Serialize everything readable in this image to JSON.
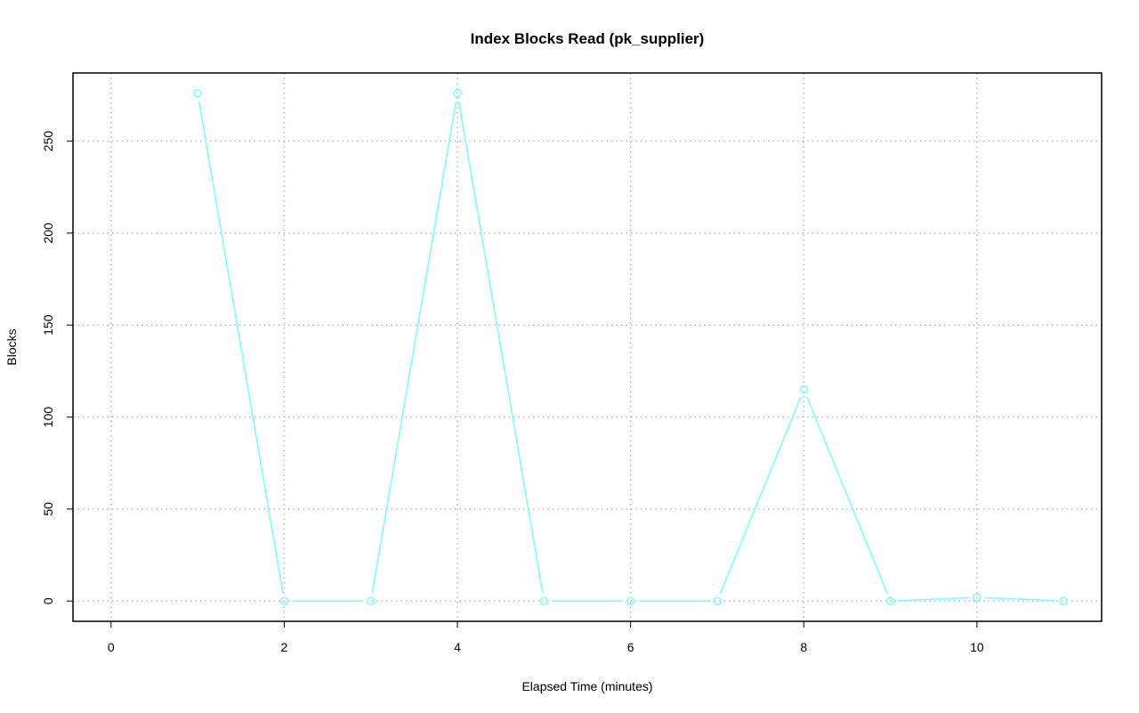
{
  "chart_data": {
    "type": "line",
    "title": "Index Blocks Read (pk_supplier)",
    "xlabel": "Elapsed Time (minutes)",
    "ylabel": "Blocks",
    "xlim": [
      0,
      11
    ],
    "ylim": [
      0,
      276
    ],
    "xticks": [
      0,
      2,
      4,
      6,
      8,
      10
    ],
    "yticks": [
      0,
      50,
      100,
      150,
      200,
      250
    ],
    "grid": true,
    "series": [
      {
        "color": "#7fffff",
        "x": [
          1,
          2,
          3,
          4,
          5,
          6,
          7,
          8,
          9,
          10,
          11
        ],
        "y": [
          276,
          0,
          0,
          276,
          0,
          0,
          0,
          115,
          0,
          2,
          0
        ]
      }
    ]
  }
}
